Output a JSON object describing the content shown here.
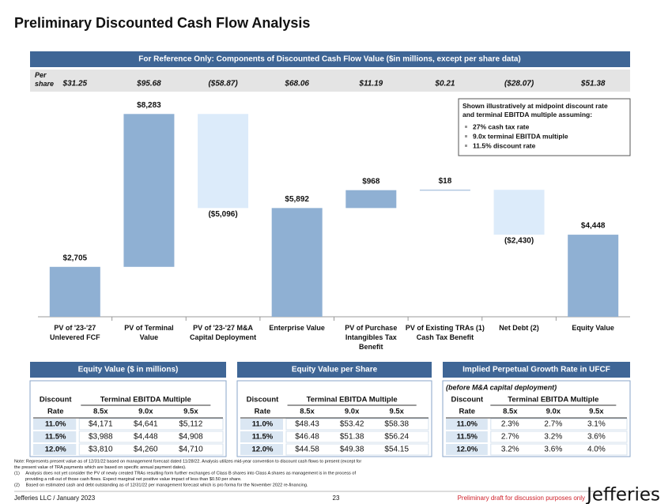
{
  "title": "Preliminary Discounted Cash Flow Analysis",
  "banner": "For Reference Only: Components of Discounted Cash Flow Value ($in millions, except per share data)",
  "per_share": {
    "label": "Per share",
    "values": [
      "$31.25",
      "$95.68",
      "($58.87)",
      "$68.06",
      "$11.19",
      "$0.21",
      "($28.07)",
      "$51.38"
    ]
  },
  "chart_data": {
    "type": "waterfall",
    "categories": [
      "PV of '23-'27\nUnlevered FCF",
      "PV of Terminal\nValue",
      "PV of '23-'27 M&A\nCapital Deployment",
      "Enterprise Value",
      "PV of Purchase\nIntangibles Tax\nBenefit",
      "PV of Existing TRAs (1)\nCash Tax Benefit",
      "Net Debt (2)",
      "Equity Value"
    ],
    "values": [
      2705,
      8283,
      -5096,
      5892,
      968,
      18,
      -2430,
      4448
    ],
    "value_labels": [
      "$2,705",
      "$8,283",
      "($5,096)",
      "$5,892",
      "$968",
      "$18",
      "($2,430)",
      "$4,448"
    ],
    "totals": [
      false,
      false,
      false,
      true,
      false,
      false,
      false,
      true
    ],
    "colors": {
      "positive": "#8fb0d3",
      "negative": "#dcebfa"
    },
    "ylim": [
      0,
      11000
    ],
    "annotation": {
      "heading": "Shown illustratively at midpoint discount rate\nand terminal EBITDA multiple assuming:",
      "bullets": [
        "27% cash tax rate",
        "9.0x terminal EBITDA multiple",
        "11.5% discount rate"
      ]
    }
  },
  "tables": [
    {
      "title": "Equity Value ($ in millions)",
      "rate_header": [
        "Discount",
        "Rate"
      ],
      "multiple_header": "Terminal EBITDA Multiple",
      "multiples": [
        "8.5x",
        "9.0x",
        "9.5x"
      ],
      "rows": [
        [
          "11.0%",
          "$4,171",
          "$4,641",
          "$5,112"
        ],
        [
          "11.5%",
          "$3,988",
          "$4,448",
          "$4,908"
        ],
        [
          "12.0%",
          "$3,810",
          "$4,260",
          "$4,710"
        ]
      ]
    },
    {
      "title": "Equity Value per Share",
      "rate_header": [
        "Discount",
        "Rate"
      ],
      "multiple_header": "Terminal EBITDA Multiple",
      "multiples": [
        "8.5x",
        "9.0x",
        "9.5x"
      ],
      "rows": [
        [
          "11.0%",
          "$48.43",
          "$53.42",
          "$58.38"
        ],
        [
          "11.5%",
          "$46.48",
          "$51.38",
          "$56.24"
        ],
        [
          "12.0%",
          "$44.58",
          "$49.38",
          "$54.15"
        ]
      ]
    },
    {
      "title": "Implied Perpetual Growth Rate in UFCF",
      "subtitle": "(before M&A capital deployment)",
      "rate_header": [
        "Discount",
        "Rate"
      ],
      "multiple_header": "Terminal EBITDA Multiple",
      "multiples": [
        "8.5x",
        "9.0x",
        "9.5x"
      ],
      "rows": [
        [
          "11.0%",
          "2.3%",
          "2.7%",
          "3.1%"
        ],
        [
          "11.5%",
          "2.7%",
          "3.2%",
          "3.6%"
        ],
        [
          "12.0%",
          "3.2%",
          "3.6%",
          "4.0%"
        ]
      ]
    }
  ],
  "notes": [
    "Note: Represents present value as of 12/31/22 based on management forecast dated 11/28/22. Analysis utilizes mid-year convention to discount cash flows to present (except for",
    "the present value of TRA payments which are based on specific annual payment dates).",
    "(1)     Analysis does not yet consider the PV of newly created TRAs resulting form further exchanges of Class B shares into Class A shares as management is in the process of",
    "         providing a roll-out of those cash flows. Expect marginal net positive value impact of less than $0.50 per share.",
    "(2)     Based on estimated cash and debt outstanding as of 12/31/22 per management forecast which is pro forma for the November 2022 re-financing."
  ],
  "footer": {
    "left": "Jefferies LLC / January 2023",
    "page": "23",
    "draft": "Preliminary draft for discussion purposes only",
    "logo": "Jefferies"
  }
}
